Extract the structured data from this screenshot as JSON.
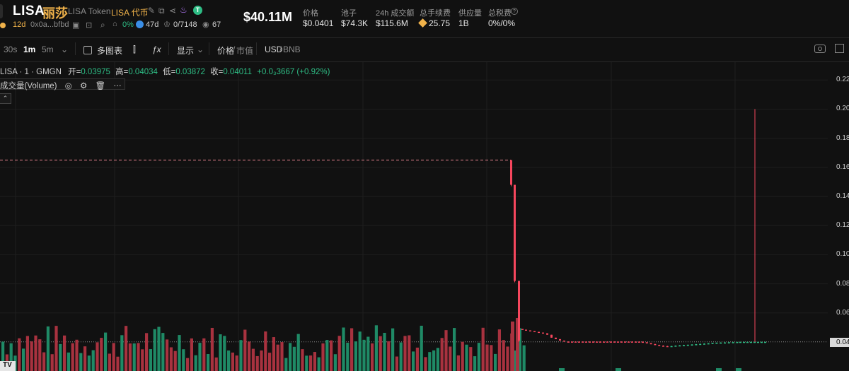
{
  "header": {
    "symbol": "LISA",
    "cn_name": "丽莎",
    "token_name": "LISA Token",
    "token_tag": "LISA 代币",
    "age": "12d",
    "address": "0x0a...bfbd",
    "holders_pct": "0%",
    "holders_age": "47d",
    "ratio": "0/7148",
    "views": "67",
    "market_cap": "$40.11M",
    "stats": [
      {
        "label": "价格",
        "value": "$0.0401"
      },
      {
        "label": "池子",
        "value": "$74.3K"
      },
      {
        "label": "24h 成交额",
        "value": "$115.6M"
      },
      {
        "label": "总手续费",
        "value": "25.75"
      },
      {
        "label": "供应量",
        "value": "1B"
      },
      {
        "label": "总税费",
        "value": "0%/0%"
      }
    ]
  },
  "toolbar": {
    "intervals": [
      "30s",
      "1m",
      "5m"
    ],
    "multi_chart": "多图表",
    "display": "显示",
    "price": "价格",
    "mcap": "市值",
    "usd": "USD",
    "bnb": "BNB"
  },
  "legend": {
    "series": "LISA · 1 · GMGN",
    "open_label": "开=",
    "open": "0.03975",
    "high_label": "高=",
    "high": "0.04034",
    "low_label": "低=",
    "low": "0.03872",
    "close_label": "收=",
    "close": "0.04011",
    "change": "+0.0₃3667 (+0.92%)",
    "volume_label": "成交量(Volume)"
  },
  "chart_data": {
    "type": "candlestick",
    "y_ticks": [
      "0.22",
      "0.20",
      "0.18",
      "0.16",
      "0.14",
      "0.12",
      "0.10",
      "0.08",
      "0.06",
      "0.04"
    ],
    "ylim": [
      0.035,
      0.225
    ],
    "last_price_label": "0.04",
    "reference_price": 0.165,
    "up_color": "#2ebd85",
    "down_color": "#f6465d"
  },
  "colors": {
    "accent": "#f0b24a",
    "up": "#2ebd85",
    "down": "#f6465d"
  }
}
